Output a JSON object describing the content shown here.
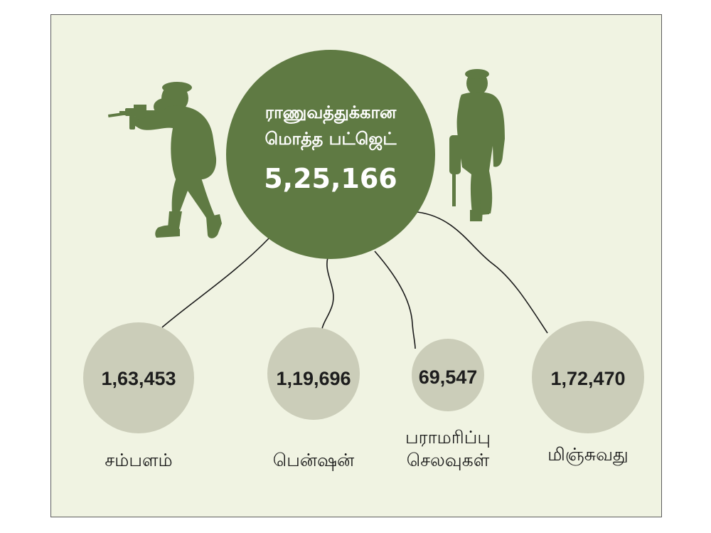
{
  "colors": {
    "main_circle": "#5f7a43",
    "sub_circle": "#cbcdb9",
    "soldier": "#5f7a43",
    "background": "#f0f3e2"
  },
  "main": {
    "title_line1": "ராணுவத்துக்கான",
    "title_line2": "மொத்த பட்ஜெட்",
    "value": "5,25,166"
  },
  "items": [
    {
      "value": "1,63,453",
      "label": "சம்பளம்"
    },
    {
      "value": "1,19,696",
      "label": "பென்ஷன்"
    },
    {
      "value": "69,547",
      "label_line1": "பராமரிப்பு",
      "label_line2": "செலவுகள்"
    },
    {
      "value": "1,72,470",
      "label": "மிஞ்சுவது"
    }
  ],
  "icons": [
    "soldier-aiming-rifle-icon",
    "soldier-standing-icon"
  ]
}
